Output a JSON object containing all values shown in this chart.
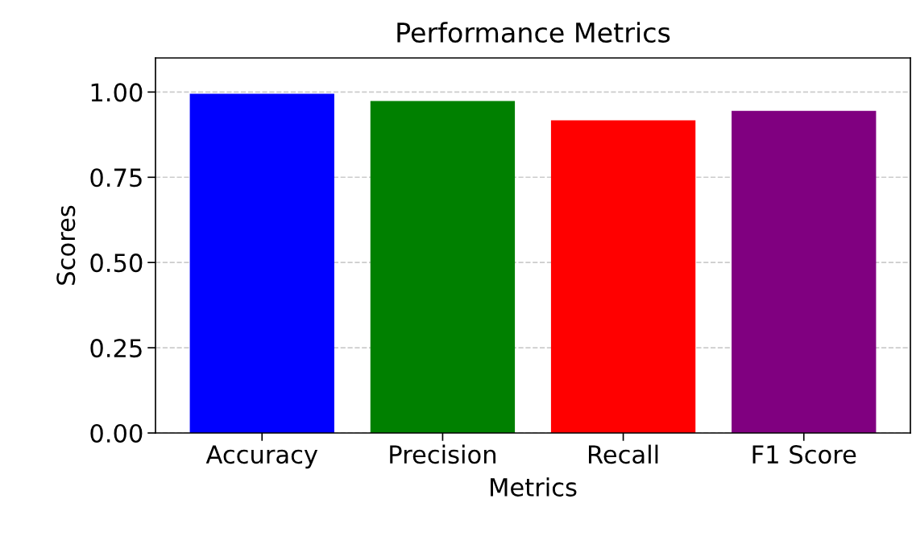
{
  "chart_data": {
    "type": "bar",
    "title": "Performance Metrics",
    "xlabel": "Metrics",
    "ylabel": "Scores",
    "categories": [
      "Accuracy",
      "Precision",
      "Recall",
      "F1 Score"
    ],
    "values": [
      0.995,
      0.974,
      0.917,
      0.945
    ],
    "colors": [
      "#0000ff",
      "#008000",
      "#ff0000",
      "#800080"
    ],
    "ylim": [
      0,
      1.1
    ],
    "yticks": [
      {
        "value": 0,
        "label": "0.00"
      },
      {
        "value": 0.25,
        "label": "0.25"
      },
      {
        "value": 0.5,
        "label": "0.50"
      },
      {
        "value": 0.75,
        "label": "0.75"
      },
      {
        "value": 1,
        "label": "1.00"
      }
    ],
    "grid": "y"
  }
}
